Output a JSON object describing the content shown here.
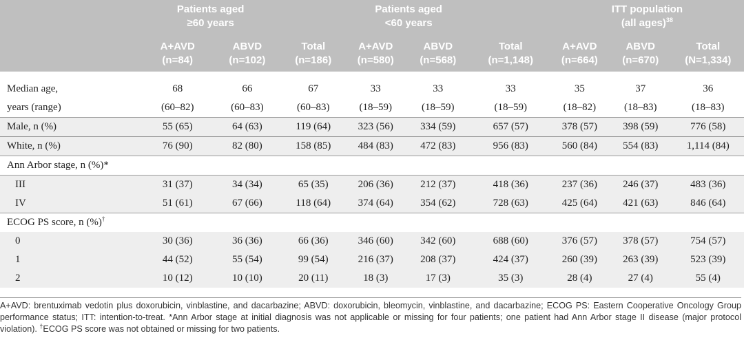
{
  "groups": [
    {
      "line1": "Patients aged",
      "line2": "≥60 years",
      "sup": ""
    },
    {
      "line1": "Patients aged",
      "line2": "<60 years",
      "sup": ""
    },
    {
      "line1": "ITT population",
      "line2": "(all ages)",
      "sup": "38"
    }
  ],
  "columns": [
    {
      "name": "A+AVD",
      "n": "(n=84)"
    },
    {
      "name": "ABVD",
      "n": "(n=102)"
    },
    {
      "name": "Total",
      "n": "(n=186)"
    },
    {
      "name": "A+AVD",
      "n": "(n=580)"
    },
    {
      "name": "ABVD",
      "n": "(n=568)"
    },
    {
      "name": "Total",
      "n": "(n=1,148)"
    },
    {
      "name": "A+AVD",
      "n": "(n=664)"
    },
    {
      "name": "ABVD",
      "n": "(n=670)"
    },
    {
      "name": "Total",
      "n": "(N=1,334)"
    }
  ],
  "rows": [
    {
      "label": "Median age,",
      "values": [
        "68",
        "66",
        "67",
        "33",
        "33",
        "33",
        "35",
        "37",
        "36"
      ]
    },
    {
      "label": "years (range)",
      "values": [
        "(60–82)",
        "(60–83)",
        "(60–83)",
        "(18–59)",
        "(18–59)",
        "(18–59)",
        "(18–82)",
        "(18–83)",
        "(18–83)"
      ]
    },
    {
      "label": "Male, n (%)",
      "values": [
        "55 (65)",
        "64 (63)",
        "119 (64)",
        "323 (56)",
        "334 (59)",
        "657 (57)",
        "378 (57)",
        "398 (59)",
        "776 (58)"
      ]
    },
    {
      "label": "White, n (%)",
      "values": [
        "76 (90)",
        "82 (80)",
        "158 (85)",
        "484 (83)",
        "472 (83)",
        "956 (83)",
        "560 (84)",
        "554 (83)",
        "1,114 (84)"
      ]
    },
    {
      "label": "Ann Arbor stage, n (%)*"
    },
    {
      "label": "III",
      "values": [
        "31 (37)",
        "34 (34)",
        "65 (35)",
        "206 (36)",
        "212 (37)",
        "418 (36)",
        "237 (36)",
        "246 (37)",
        "483 (36)"
      ]
    },
    {
      "label": "IV",
      "values": [
        "51 (61)",
        "67 (66)",
        "118 (64)",
        "374 (64)",
        "354 (62)",
        "728 (63)",
        "425 (64)",
        "421 (63)",
        "846 (64)"
      ]
    },
    {
      "label": "ECOG PS score, n (%)",
      "sup": "†"
    },
    {
      "label": "0",
      "values": [
        "30 (36)",
        "36 (36)",
        "66 (36)",
        "346 (60)",
        "342 (60)",
        "688 (60)",
        "376 (57)",
        "378 (57)",
        "754 (57)"
      ]
    },
    {
      "label": "1",
      "values": [
        "44 (52)",
        "55 (54)",
        "99 (54)",
        "216 (37)",
        "208 (37)",
        "424 (37)",
        "260 (39)",
        "263 (39)",
        "523 (39)"
      ]
    },
    {
      "label": "2",
      "values": [
        "10 (12)",
        "10 (10)",
        "20 (11)",
        "18 (3)",
        "17 (3)",
        "35 (3)",
        "28 (4)",
        "27 (4)",
        "55 (4)"
      ]
    }
  ],
  "footnote": {
    "part1": "A+AVD: brentuximab vedotin plus doxorubicin, vinblastine, and dacarbazine; ABVD: doxorubicin, bleomycin, vinblastine, and dacarbazine; ECOG PS: Eastern Cooperative Oncology Group performance status; ITT: intention-to-treat. *Ann Arbor stage at initial diagnosis was not applicable or missing for four patients; one patient had Ann Arbor stage II disease (major protocol violation). ",
    "dagger": "†",
    "part2": "ECOG PS score was not obtained or missing for two patients."
  }
}
